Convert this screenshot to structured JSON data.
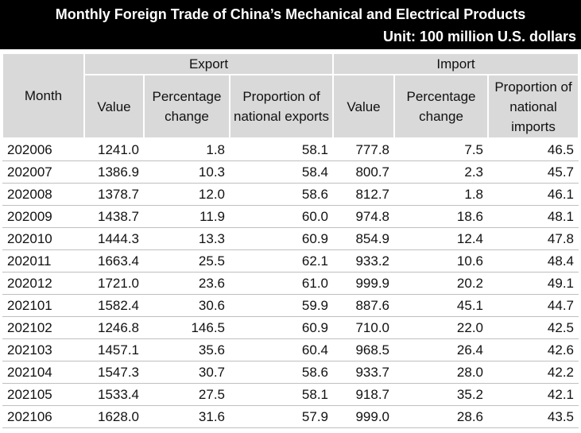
{
  "header": {
    "title": "Monthly Foreign Trade of China’s Mechanical and Electrical Products",
    "unit": "Unit: 100 million U.S. dollars"
  },
  "table": {
    "row_header": "Month",
    "group_headers": [
      "Export",
      "Import"
    ],
    "column_headers": [
      "Value",
      "Percentage change",
      "Proportion of national exports",
      "Value",
      "Percentage change",
      "Proportion of national imports"
    ],
    "rows": [
      [
        "202006",
        "1241.0",
        "1.8",
        "58.1",
        "777.8",
        "7.5",
        "46.5"
      ],
      [
        "202007",
        "1386.9",
        "10.3",
        "58.4",
        "800.7",
        "2.3",
        "45.7"
      ],
      [
        "202008",
        "1378.7",
        "12.0",
        "58.6",
        "812.7",
        "1.8",
        "46.1"
      ],
      [
        "202009",
        "1438.7",
        "11.9",
        "60.0",
        "974.8",
        "18.6",
        "48.1"
      ],
      [
        "202010",
        "1444.3",
        "13.3",
        "60.9",
        "854.9",
        "12.4",
        "47.8"
      ],
      [
        "202011",
        "1663.4",
        "25.5",
        "62.1",
        "933.2",
        "10.6",
        "48.4"
      ],
      [
        "202012",
        "1721.0",
        "23.6",
        "61.0",
        "999.9",
        "20.2",
        "49.1"
      ],
      [
        "202101",
        "1582.4",
        "30.6",
        "59.9",
        "887.6",
        "45.1",
        "44.7"
      ],
      [
        "202102",
        "1246.8",
        "146.5",
        "60.9",
        "710.0",
        "22.0",
        "42.5"
      ],
      [
        "202103",
        "1457.1",
        "35.6",
        "60.4",
        "968.5",
        "26.4",
        "42.6"
      ],
      [
        "202104",
        "1547.3",
        "30.7",
        "58.6",
        "933.7",
        "28.0",
        "42.2"
      ],
      [
        "202105",
        "1533.4",
        "27.5",
        "58.1",
        "918.7",
        "35.2",
        "42.1"
      ],
      [
        "202106",
        "1628.0",
        "31.6",
        "57.9",
        "999.0",
        "28.6",
        "43.5"
      ]
    ]
  }
}
